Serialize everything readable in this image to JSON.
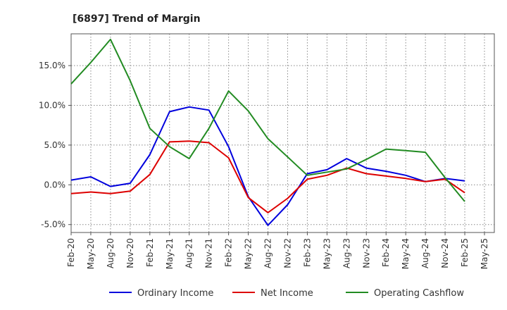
{
  "chart_data": {
    "type": "line",
    "title": "[6897]  Trend of Margin",
    "xlabel": "",
    "ylabel": "",
    "categories": [
      "Feb-20",
      "May-20",
      "Aug-20",
      "Nov-20",
      "Feb-21",
      "May-21",
      "Aug-21",
      "Nov-21",
      "Feb-22",
      "May-22",
      "Aug-22",
      "Nov-22",
      "Feb-23",
      "May-23",
      "Aug-23",
      "Nov-23",
      "Feb-24",
      "May-24",
      "Aug-24",
      "Nov-24",
      "Feb-25",
      "May-25"
    ],
    "y_ticks": [
      -5,
      0,
      5,
      10,
      15
    ],
    "y_tick_labels": [
      "-5.0%",
      "0.0%",
      "5.0%",
      "10.0%",
      "15.0%"
    ],
    "ylim": [
      -6,
      19
    ],
    "grid": true,
    "legend_position": "bottom",
    "series": [
      {
        "name": "Ordinary Income",
        "color": "#0000dd",
        "values": [
          0.6,
          1.0,
          -0.2,
          0.2,
          3.8,
          9.2,
          9.8,
          9.4,
          4.8,
          -1.5,
          -5.1,
          -2.5,
          1.4,
          1.9,
          3.3,
          2.1,
          1.7,
          1.2,
          0.4,
          0.8,
          0.5,
          null
        ]
      },
      {
        "name": "Net Income",
        "color": "#dd0000",
        "values": [
          -1.1,
          -0.9,
          -1.1,
          -0.8,
          1.3,
          5.4,
          5.5,
          5.3,
          3.4,
          -1.6,
          -3.5,
          -1.7,
          0.7,
          1.2,
          2.1,
          1.4,
          1.1,
          0.8,
          0.4,
          0.7,
          -1.0,
          null
        ]
      },
      {
        "name": "Operating Cashflow",
        "color": "#228b22",
        "values": [
          12.7,
          15.4,
          18.3,
          13.1,
          7.1,
          4.8,
          3.3,
          7.1,
          11.8,
          9.3,
          5.8,
          3.5,
          1.2,
          1.6,
          2.0,
          3.2,
          4.5,
          4.3,
          4.1,
          0.9,
          -2.1,
          null
        ]
      }
    ]
  }
}
